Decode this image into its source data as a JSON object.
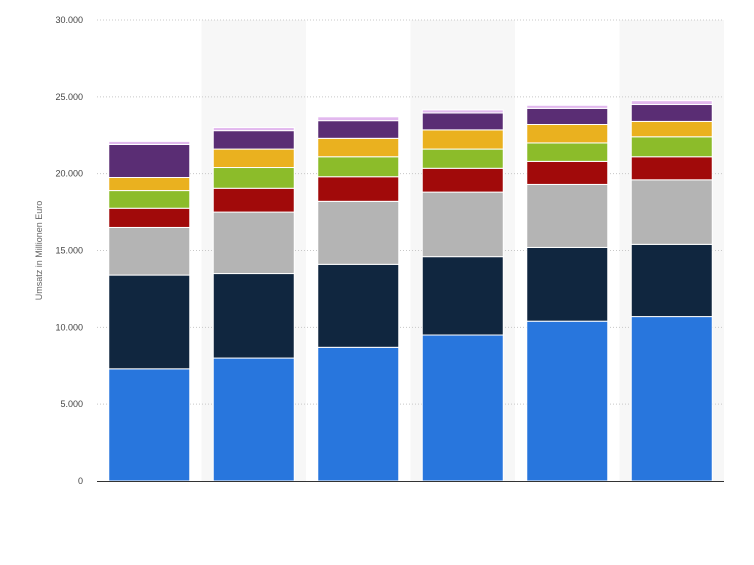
{
  "chart_data": {
    "type": "bar",
    "stacked": true,
    "title": "",
    "xlabel": "",
    "ylabel": "Umsatz in Millionen Euro",
    "ylim": [
      0,
      30000
    ],
    "yticks": [
      0,
      5000,
      10000,
      15000,
      20000,
      25000,
      30000
    ],
    "ytick_labels": [
      "0",
      "5.000",
      "10.000",
      "15.000",
      "20.000",
      "25.000",
      "30.000"
    ],
    "grid": true,
    "legend": false,
    "categories": [
      "",
      "",
      "",
      "",
      "",
      ""
    ],
    "series": [
      {
        "color": "#2876dd",
        "values": [
          7300,
          8000,
          8700,
          9500,
          10400,
          10700
        ]
      },
      {
        "color": "#10263f",
        "values": [
          6100,
          5500,
          5400,
          5100,
          4800,
          4700
        ]
      },
      {
        "color": "#b4b4b4",
        "values": [
          3100,
          4000,
          4100,
          4200,
          4100,
          4200
        ]
      },
      {
        "color": "#a10a0a",
        "values": [
          1250,
          1550,
          1600,
          1550,
          1500,
          1500
        ]
      },
      {
        "color": "#8cbc2a",
        "values": [
          1150,
          1350,
          1300,
          1250,
          1200,
          1300
        ]
      },
      {
        "color": "#eab11f",
        "values": [
          850,
          1200,
          1200,
          1250,
          1200,
          1000
        ]
      },
      {
        "color": "#5a2d74",
        "values": [
          2150,
          1200,
          1150,
          1100,
          1050,
          1100
        ]
      },
      {
        "color": "#e2b8ee",
        "values": [
          200,
          200,
          250,
          200,
          200,
          250
        ]
      }
    ]
  }
}
